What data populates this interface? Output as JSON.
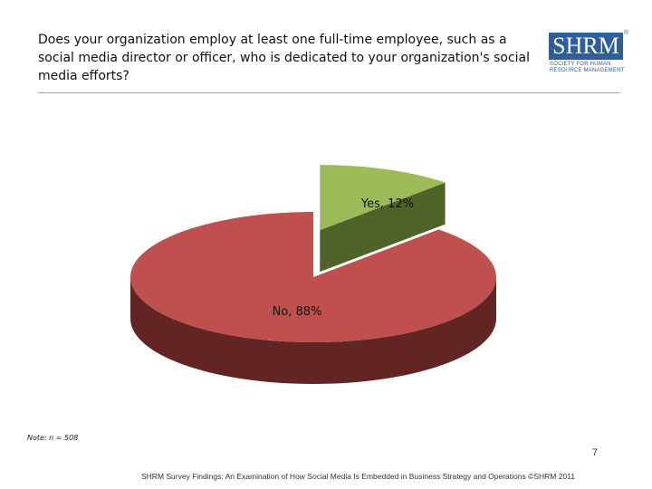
{
  "question": "Does your organization employ at least one full-time employee, such as a social media director or officer, who is dedicated to your organization's social media efforts?",
  "logo": {
    "letters": "SHRM",
    "registered": "®",
    "tagline_1": "SOCIETY FOR HUMAN",
    "tagline_2": "RESOURCE MANAGEMENT"
  },
  "chart_data": {
    "type": "pie",
    "title": "",
    "slices": [
      {
        "label": "Yes, 12%",
        "category": "Yes",
        "value": 12,
        "color": "#9bbb59",
        "side_color": "#4f6228",
        "exploded": true
      },
      {
        "label": "No, 88%",
        "category": "No",
        "value": 88,
        "color": "#c0504d",
        "side_color": "#632523",
        "exploded": false
      }
    ],
    "style": "3d-exploded"
  },
  "note": "Note: n = 508",
  "page_number": "7",
  "footer": "SHRM Survey Findings: An Examination of How Social Media Is Embedded in Business Strategy and Operations ©SHRM 2011"
}
